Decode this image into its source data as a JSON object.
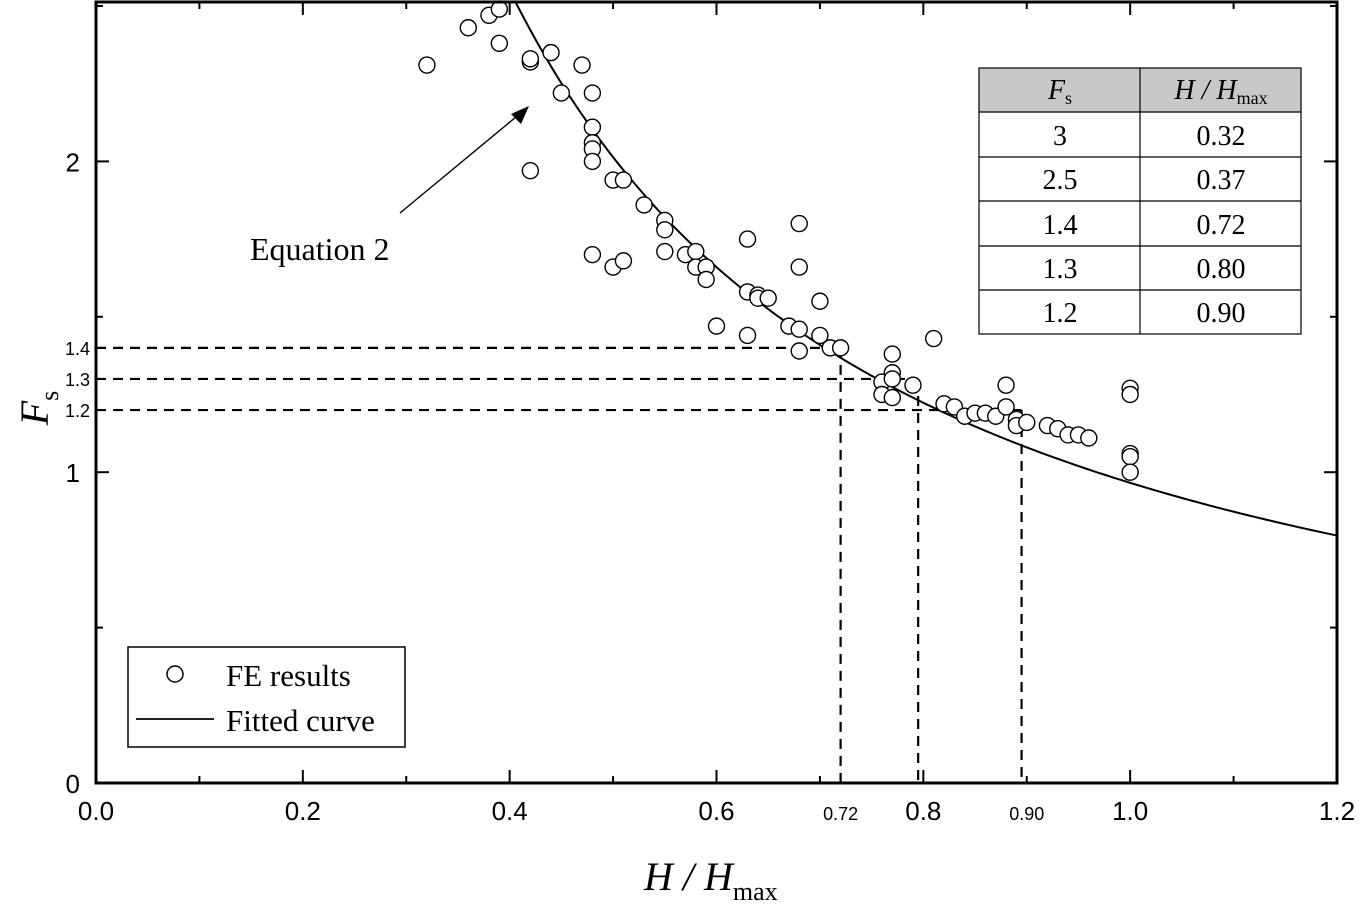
{
  "chart_data": {
    "type": "scatter",
    "xlabel": {
      "main": "H / H",
      "sub": "max"
    },
    "ylabel": {
      "main": "F",
      "sub": "s"
    },
    "xlim": [
      0,
      1.2
    ],
    "ylim": [
      0,
      2.5
    ],
    "x_ticks": [
      "0.0",
      "0.2",
      "0.4",
      "0.6",
      "0.8",
      "1.0",
      "1.2"
    ],
    "y_ticks": [
      "0",
      "1",
      "2"
    ],
    "marker_x_labels": [
      "0.72",
      "0.90"
    ],
    "marker_y_labels": [
      "1.4",
      "1.3",
      "1.2"
    ],
    "annotation": "Equation 2",
    "legend": {
      "position": "bottom-left",
      "items": [
        {
          "label": "FE results",
          "marker": "circle"
        },
        {
          "label": "Fitted curve",
          "marker": "line"
        }
      ]
    },
    "series": [
      {
        "name": "FE results",
        "kind": "scatter",
        "points": [
          [
            0.32,
            2.31
          ],
          [
            0.36,
            2.43
          ],
          [
            0.38,
            2.47
          ],
          [
            0.39,
            2.49
          ],
          [
            0.39,
            2.38
          ],
          [
            0.42,
            2.32
          ],
          [
            0.42,
            2.33
          ],
          [
            0.44,
            2.35
          ],
          [
            0.47,
            2.31
          ],
          [
            0.45,
            2.22
          ],
          [
            0.48,
            2.22
          ],
          [
            0.48,
            2.11
          ],
          [
            0.48,
            2.06
          ],
          [
            0.48,
            2.04
          ],
          [
            0.48,
            2.0
          ],
          [
            0.42,
            1.97
          ],
          [
            0.5,
            1.94
          ],
          [
            0.51,
            1.94
          ],
          [
            0.53,
            1.86
          ],
          [
            0.55,
            1.81
          ],
          [
            0.55,
            1.78
          ],
          [
            0.48,
            1.7
          ],
          [
            0.5,
            1.66
          ],
          [
            0.51,
            1.68
          ],
          [
            0.55,
            1.71
          ],
          [
            0.57,
            1.7
          ],
          [
            0.58,
            1.71
          ],
          [
            0.58,
            1.66
          ],
          [
            0.59,
            1.66
          ],
          [
            0.59,
            1.62
          ],
          [
            0.63,
            1.75
          ],
          [
            0.68,
            1.8
          ],
          [
            0.68,
            1.66
          ],
          [
            0.63,
            1.58
          ],
          [
            0.64,
            1.57
          ],
          [
            0.64,
            1.56
          ],
          [
            0.65,
            1.56
          ],
          [
            0.7,
            1.55
          ],
          [
            0.6,
            1.47
          ],
          [
            0.63,
            1.44
          ],
          [
            0.67,
            1.47
          ],
          [
            0.68,
            1.46
          ],
          [
            0.7,
            1.44
          ],
          [
            0.68,
            1.39
          ],
          [
            0.71,
            1.4
          ],
          [
            0.72,
            1.4
          ],
          [
            0.77,
            1.38
          ],
          [
            0.81,
            1.43
          ],
          [
            0.76,
            1.29
          ],
          [
            0.77,
            1.32
          ],
          [
            0.77,
            1.3
          ],
          [
            0.79,
            1.28
          ],
          [
            0.76,
            1.25
          ],
          [
            0.77,
            1.24
          ],
          [
            0.82,
            1.22
          ],
          [
            0.83,
            1.21
          ],
          [
            0.84,
            1.18
          ],
          [
            0.85,
            1.19
          ],
          [
            0.86,
            1.19
          ],
          [
            0.87,
            1.18
          ],
          [
            0.88,
            1.28
          ],
          [
            0.88,
            1.21
          ],
          [
            0.89,
            1.17
          ],
          [
            0.89,
            1.15
          ],
          [
            0.9,
            1.16
          ],
          [
            0.92,
            1.15
          ],
          [
            0.93,
            1.14
          ],
          [
            0.94,
            1.12
          ],
          [
            0.95,
            1.12
          ],
          [
            0.96,
            1.11
          ],
          [
            1.0,
            1.27
          ],
          [
            1.0,
            1.25
          ],
          [
            1.0,
            1.06
          ],
          [
            1.0,
            1.05
          ],
          [
            1.0,
            1.0
          ]
        ]
      },
      {
        "name": "Fitted curve",
        "kind": "line",
        "equation": "F_s = 0.9658 * (H/H_max)^(-1.06)",
        "x_range": [
          0.38,
          1.2
        ]
      }
    ],
    "table": {
      "headers": [
        {
          "main": "F",
          "sub": "s"
        },
        {
          "main": "H / H",
          "sub": "max"
        }
      ],
      "rows": [
        [
          "3",
          "0.32"
        ],
        [
          "2.5",
          "0.37"
        ],
        [
          "1.4",
          "0.72"
        ],
        [
          "1.3",
          "0.80"
        ],
        [
          "1.2",
          "0.90"
        ]
      ]
    },
    "guides": [
      {
        "x": 0.72,
        "y": 1.4
      },
      {
        "x": 0.795,
        "y": 1.3
      },
      {
        "x": 0.895,
        "y": 1.2
      }
    ]
  }
}
